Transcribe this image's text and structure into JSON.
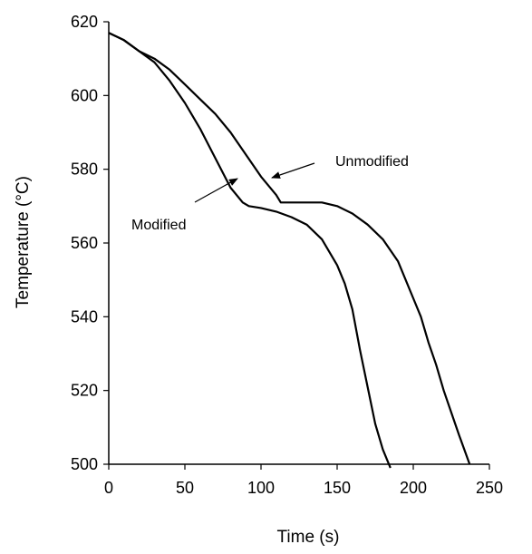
{
  "chart_data": {
    "type": "line",
    "title": "",
    "xlabel": "Time (s)",
    "ylabel": "Temperature (°C)",
    "xlim": [
      0,
      250
    ],
    "ylim": [
      500,
      620
    ],
    "x_ticks": [
      0,
      50,
      100,
      150,
      200,
      250
    ],
    "y_ticks": [
      500,
      520,
      540,
      560,
      580,
      600,
      620
    ],
    "grid": false,
    "legend": "none",
    "series": [
      {
        "name": "Modified",
        "x": [
          0,
          10,
          20,
          30,
          40,
          50,
          60,
          70,
          80,
          88,
          92,
          100,
          110,
          120,
          130,
          140,
          150,
          155,
          160,
          165,
          170,
          175,
          180,
          185
        ],
        "y": [
          617,
          615,
          612,
          609,
          604,
          598,
          591,
          583,
          575,
          571,
          570,
          569.5,
          568.5,
          567,
          565,
          561,
          554,
          549,
          542,
          531,
          521,
          511,
          504,
          499
        ]
      },
      {
        "name": "Unmodified",
        "x": [
          0,
          10,
          20,
          30,
          40,
          50,
          60,
          70,
          80,
          90,
          100,
          110,
          113,
          120,
          130,
          140,
          150,
          160,
          170,
          180,
          190,
          200,
          205,
          210,
          215,
          220,
          225,
          230,
          237
        ],
        "y": [
          617,
          615,
          612,
          610,
          607,
          603,
          599,
          595,
          590,
          584,
          578,
          573,
          571,
          571,
          571,
          571,
          570,
          568,
          565,
          561,
          555,
          545,
          540,
          533,
          527,
          520,
          514,
          508,
          500
        ]
      }
    ],
    "annotations": [
      {
        "text": "Modified",
        "points_to": "Modified",
        "x": 83,
        "y": 578
      },
      {
        "text": "Unmodified",
        "points_to": "Unmodified",
        "x": 97,
        "y": 576
      }
    ]
  }
}
